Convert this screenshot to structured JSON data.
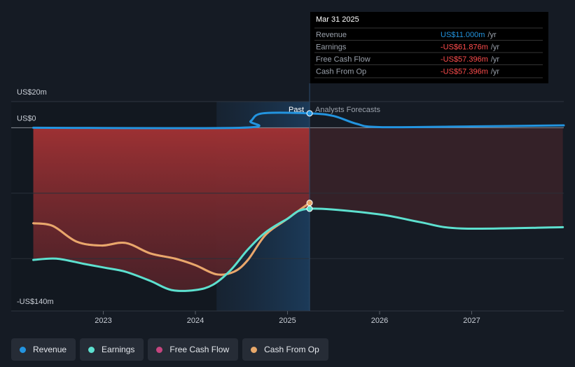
{
  "chart_data": {
    "type": "line",
    "xlim": [
      2022.0,
      2028.0
    ],
    "xticks": [
      {
        "value": 2023,
        "label": "2023"
      },
      {
        "value": 2024,
        "label": "2024"
      },
      {
        "value": 2025,
        "label": "2025"
      },
      {
        "value": 2026,
        "label": "2026"
      },
      {
        "value": 2027,
        "label": "2027"
      }
    ],
    "ylim": [
      -140,
      20
    ],
    "yticks": [
      {
        "value": 20,
        "label": "US$20m"
      },
      {
        "value": 0,
        "label": "US$0"
      },
      {
        "value": -140,
        "label": "-US$140m"
      }
    ],
    "ygrid": [
      -50,
      -100
    ],
    "past_label": "Past",
    "forecast_label": "Analysts Forecasts",
    "series": [
      {
        "name": "Revenue",
        "color": "#2394df",
        "x": [
          2022.24,
          2024.5,
          2024.6,
          2024.73,
          2025.24,
          2025.5,
          2025.75,
          2026.0,
          2027.0,
          2028.0
        ],
        "values": [
          0,
          0,
          5,
          11,
          11,
          9,
          3,
          0.5,
          1,
          1.8
        ]
      },
      {
        "name": "Earnings",
        "color": "#5de0cf",
        "x": [
          2022.24,
          2022.49,
          2022.79,
          2023.02,
          2023.24,
          2023.51,
          2023.74,
          2024.0,
          2024.19,
          2024.38,
          2024.57,
          2024.76,
          2024.99,
          2025.24,
          2025.98,
          2026.43,
          2026.89,
          2027.99
        ],
        "values": [
          -101,
          -100,
          -104,
          -107,
          -110,
          -117,
          -124,
          -124,
          -120,
          -109,
          -93,
          -80,
          -70,
          -61.876,
          -66,
          -72,
          -77,
          -76
        ]
      },
      {
        "name": "Free Cash Flow",
        "color": "#c5457f",
        "x": [
          2022.24,
          2022.45,
          2022.71,
          2022.98,
          2023.24,
          2023.51,
          2023.78,
          2024.0,
          2024.23,
          2024.42,
          2024.57,
          2024.76,
          2024.99,
          2025.24
        ],
        "values": [
          -73,
          -75,
          -87,
          -90,
          -88,
          -96,
          -100,
          -105,
          -112,
          -110,
          -101,
          -82,
          -70,
          -57.396
        ]
      },
      {
        "name": "Cash From Op",
        "color": "#e8a86a",
        "x": [
          2022.24,
          2022.45,
          2022.71,
          2022.98,
          2023.24,
          2023.51,
          2023.78,
          2024.0,
          2024.23,
          2024.42,
          2024.57,
          2024.76,
          2024.99,
          2025.24
        ],
        "values": [
          -73,
          -75,
          -87,
          -90,
          -88,
          -96,
          -100,
          -105,
          -112,
          -110,
          -101,
          -82,
          -70,
          -57.396
        ]
      }
    ],
    "tooltip": {
      "date": "Mar 31 2025",
      "rows": [
        {
          "label": "Revenue",
          "value": 11.0,
          "value_label": "US$11.000m",
          "unit": "/yr"
        },
        {
          "label": "Earnings",
          "value": -61.876,
          "value_label": "-US$61.876m",
          "unit": "/yr"
        },
        {
          "label": "Free Cash Flow",
          "value": -57.396,
          "value_label": "-US$57.396m",
          "unit": "/yr"
        },
        {
          "label": "Cash From Op",
          "value": -57.396,
          "value_label": "-US$57.396m",
          "unit": "/yr"
        }
      ]
    }
  }
}
